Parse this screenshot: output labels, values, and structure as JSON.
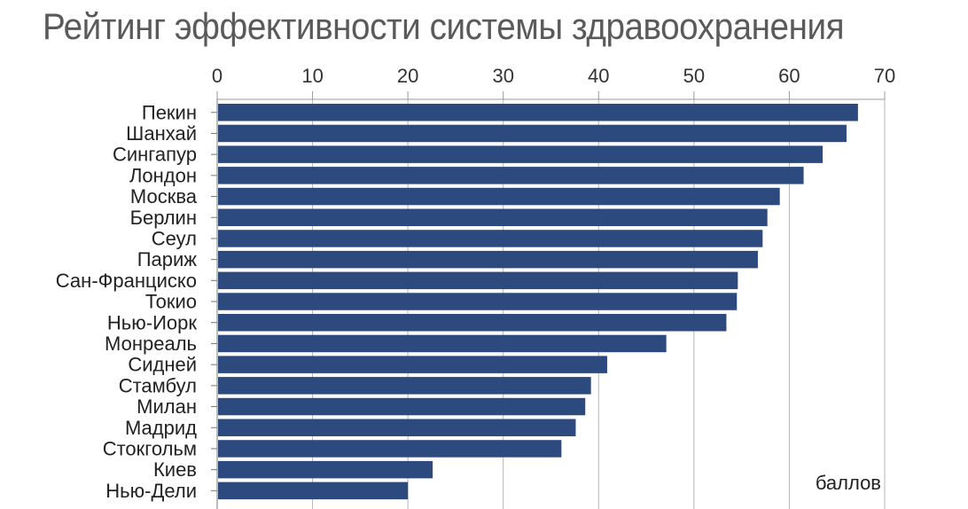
{
  "chart_data": {
    "type": "bar",
    "orientation": "horizontal",
    "title": "Рейтинг эффективности системы здравоохранения",
    "unit_label": "баллов",
    "xlim": [
      0,
      70
    ],
    "xticks": [
      0,
      10,
      20,
      30,
      40,
      50,
      60,
      70
    ],
    "grid": true,
    "bar_color": "#2c4a7e",
    "categories": [
      "Пекин",
      "Шанхай",
      "Сингапур",
      "Лондон",
      "Москва",
      "Берлин",
      "Сеул",
      "Париж",
      "Сан-Франциско",
      "Токио",
      "Нью-Иорк",
      "Монреаль",
      "Сидней",
      "Стамбул",
      "Милан",
      "Мадрид",
      "Стокгольм",
      "Киев",
      "Нью-Дели"
    ],
    "values": [
      67.2,
      66.0,
      63.5,
      61.5,
      59.0,
      57.7,
      57.2,
      56.7,
      54.6,
      54.5,
      53.4,
      47.1,
      40.9,
      39.2,
      38.6,
      37.6,
      36.1,
      22.6,
      20.0
    ]
  }
}
